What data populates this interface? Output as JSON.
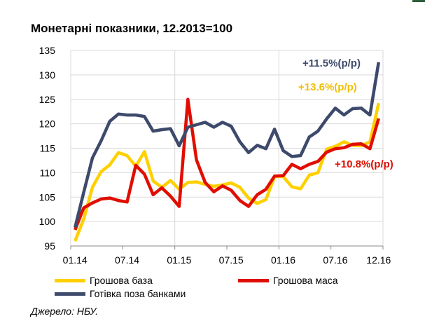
{
  "chart_data": {
    "type": "line",
    "title": "Монетарні показники, 12.2013=100",
    "xlabel": "",
    "ylabel": "",
    "ylim": [
      95,
      135
    ],
    "yticks": [
      95,
      100,
      105,
      110,
      115,
      120,
      125,
      130,
      135
    ],
    "xtick_labels": [
      "01.14",
      "07.14",
      "01.15",
      "07.15",
      "01.16",
      "07.16",
      "12.16"
    ],
    "grid": true,
    "legend_position": "bottom",
    "series": [
      {
        "name": "Грошова база",
        "color": "#FFD000",
        "values": [
          96,
          100.5,
          107,
          110.2,
          111.6,
          114.1,
          113.5,
          111.3,
          114.3,
          108.3,
          107,
          108.4,
          106.6,
          108,
          108.1,
          107.6,
          107.2,
          107.5,
          107.9,
          107,
          104.8,
          103.7,
          104.5,
          109.2,
          109.2,
          107.1,
          106.7,
          109.5,
          110,
          114.8,
          115.4,
          116.3,
          115.6,
          115.5,
          116.3,
          124.2
        ]
      },
      {
        "name": "Грошова маса",
        "color": "#E00E00",
        "values": [
          98.3,
          102.8,
          103.8,
          104.6,
          104.8,
          104.3,
          104,
          111.5,
          109.7,
          105.5,
          106.9,
          105.2,
          103.1,
          125,
          112.6,
          108,
          106.1,
          107.3,
          106.4,
          104.3,
          103.1,
          105.5,
          106.6,
          109.3,
          109.4,
          111.7,
          110.8,
          111.7,
          112.3,
          114.2,
          114.9,
          115.1,
          115.8,
          115.9,
          114.9,
          121.1
        ]
      },
      {
        "name": "Готівка поза банками",
        "color": "#3D4A6B",
        "values": [
          98.8,
          106,
          113,
          116.5,
          120.5,
          122,
          121.8,
          121.8,
          121.5,
          118.5,
          118.8,
          119,
          115.5,
          119.3,
          119.8,
          120.3,
          119.3,
          120.3,
          119.5,
          116.3,
          114.1,
          115.6,
          114.9,
          118.9,
          114.5,
          113.3,
          113.5,
          117.3,
          118.5,
          121,
          123.2,
          121.8,
          123.1,
          123.2,
          121.8,
          132.6
        ]
      }
    ],
    "annotations": [
      {
        "text": "+11.5%(p/p)",
        "color": "#3D4A6B"
      },
      {
        "text": "+13.6%(p/p)",
        "color": "#F2BE00"
      },
      {
        "text": "+10.8%(p/p)",
        "color": "#E00E00"
      }
    ]
  },
  "source": "Джерело: НБУ."
}
